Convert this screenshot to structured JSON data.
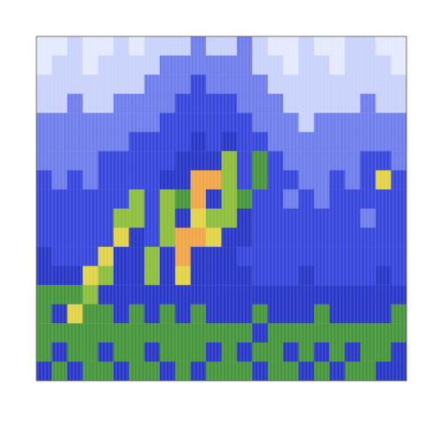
{
  "chart_data": {
    "type": "spectrogram",
    "tick_labels": false,
    "zlim": [
      0,
      10
    ],
    "cells": [
      [
        1,
        1,
        2,
        1,
        1,
        2,
        1,
        2,
        2,
        2,
        3,
        2,
        2,
        3,
        2,
        1,
        1,
        2,
        1,
        1,
        2,
        2,
        1,
        1
      ],
      [
        1,
        2,
        2,
        1,
        2,
        2,
        2,
        2,
        3,
        3,
        3,
        3,
        3,
        3,
        2,
        2,
        1,
        2,
        2,
        1,
        2,
        2,
        2,
        1
      ],
      [
        2,
        2,
        2,
        2,
        2,
        2,
        2,
        3,
        3,
        3,
        4,
        3,
        3,
        3,
        3,
        2,
        2,
        2,
        2,
        2,
        2,
        2,
        2,
        2
      ],
      [
        2,
        2,
        3,
        2,
        2,
        3,
        3,
        3,
        3,
        4,
        4,
        4,
        4,
        3,
        3,
        3,
        2,
        2,
        2,
        2,
        2,
        3,
        2,
        2
      ],
      [
        3,
        3,
        3,
        3,
        3,
        3,
        3,
        3,
        4,
        4,
        4,
        4,
        4,
        4,
        3,
        3,
        3,
        2,
        3,
        3,
        3,
        3,
        3,
        3
      ],
      [
        3,
        3,
        3,
        3,
        3,
        3,
        4,
        4,
        4,
        4,
        5,
        4,
        5,
        4,
        4,
        3,
        3,
        3,
        3,
        3,
        3,
        3,
        3,
        3
      ],
      [
        3,
        3,
        3,
        3,
        4,
        4,
        4,
        4,
        4,
        5,
        5,
        5,
        7,
        4,
        6,
        4,
        3,
        3,
        3,
        3,
        3,
        4,
        4,
        3
      ],
      [
        4,
        3,
        4,
        3,
        4,
        4,
        4,
        4,
        5,
        5,
        9,
        9,
        7,
        4,
        6,
        4,
        4,
        3,
        3,
        4,
        3,
        4,
        8,
        4
      ],
      [
        4,
        4,
        4,
        4,
        4,
        4,
        7,
        4,
        7,
        6,
        9,
        5,
        7,
        6,
        4,
        4,
        3,
        4,
        3,
        4,
        4,
        4,
        4,
        4
      ],
      [
        4,
        4,
        4,
        4,
        4,
        7,
        7,
        4,
        7,
        5,
        8,
        7,
        7,
        5,
        4,
        4,
        4,
        4,
        4,
        4,
        4,
        3,
        4,
        4
      ],
      [
        4,
        4,
        4,
        4,
        4,
        8,
        5,
        4,
        7,
        9,
        9,
        8,
        5,
        5,
        4,
        4,
        4,
        4,
        4,
        4,
        4,
        4,
        4,
        4
      ],
      [
        5,
        4,
        4,
        4,
        8,
        5,
        5,
        7,
        5,
        9,
        5,
        5,
        5,
        4,
        4,
        4,
        4,
        4,
        4,
        4,
        4,
        4,
        4,
        4
      ],
      [
        5,
        5,
        5,
        8,
        7,
        5,
        5,
        7,
        5,
        8,
        5,
        5,
        5,
        5,
        4,
        4,
        4,
        5,
        4,
        4,
        4,
        4,
        5,
        4
      ],
      [
        6,
        6,
        6,
        7,
        5,
        5,
        5,
        5,
        5,
        5,
        5,
        5,
        5,
        5,
        5,
        5,
        5,
        5,
        5,
        5,
        5,
        5,
        5,
        5
      ],
      [
        6,
        5,
        8,
        6,
        6,
        5,
        6,
        5,
        6,
        5,
        6,
        5,
        5,
        5,
        6,
        5,
        5,
        5,
        6,
        5,
        5,
        5,
        5,
        6
      ],
      [
        6,
        6,
        6,
        6,
        6,
        6,
        6,
        6,
        6,
        6,
        6,
        6,
        6,
        6,
        5,
        6,
        6,
        6,
        6,
        6,
        6,
        6,
        6,
        6
      ],
      [
        6,
        5,
        6,
        6,
        5,
        6,
        6,
        5,
        6,
        6,
        6,
        5,
        6,
        5,
        6,
        6,
        5,
        6,
        5,
        6,
        5,
        6,
        6,
        5
      ],
      [
        5,
        6,
        5,
        6,
        6,
        5,
        6,
        6,
        5,
        6,
        5,
        6,
        6,
        6,
        5,
        6,
        6,
        5,
        6,
        5,
        6,
        6,
        5,
        5
      ]
    ]
  }
}
